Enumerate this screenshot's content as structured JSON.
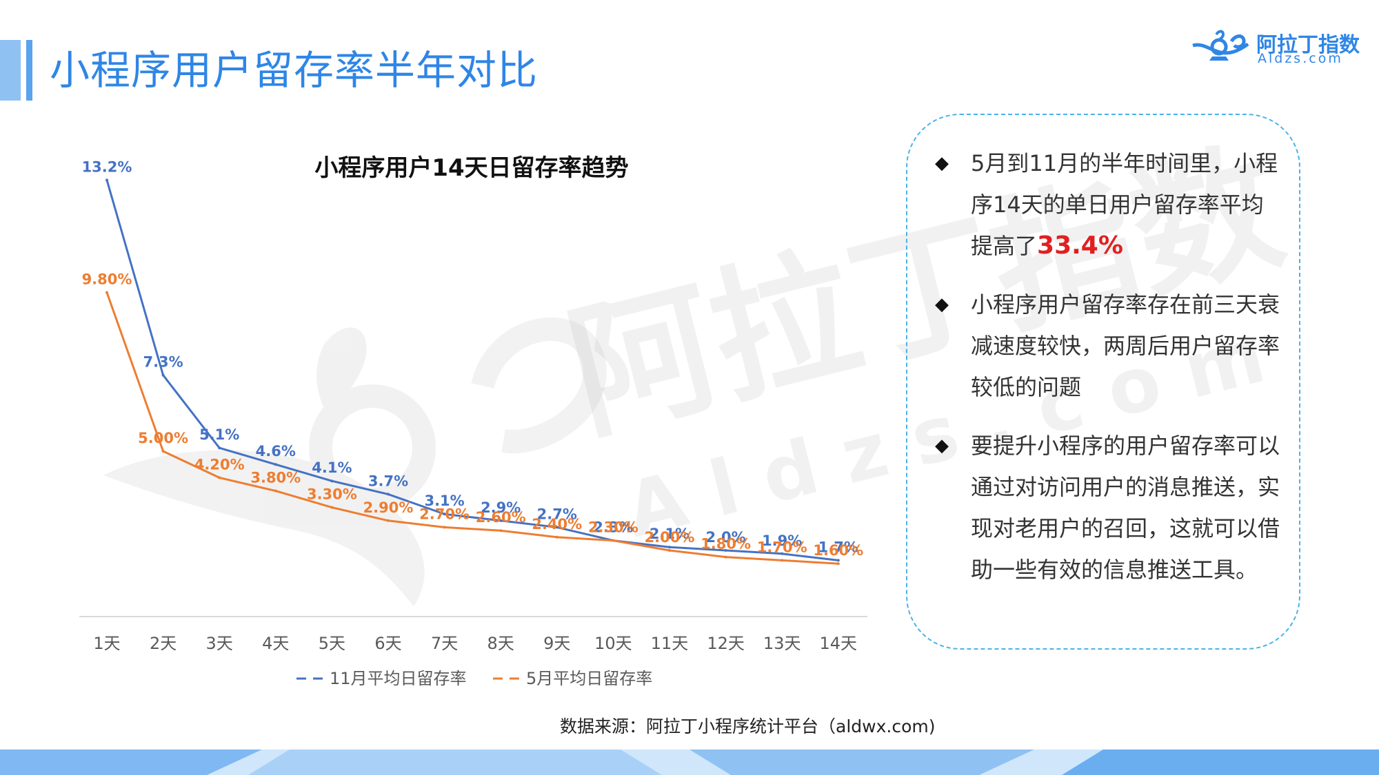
{
  "header": {
    "title": "小程序用户留存率半年对比",
    "logo_cn": "阿拉丁指数",
    "logo_en": "Aldzs.com"
  },
  "watermark": {
    "cn": "阿拉丁指数",
    "en": "Aldzs.com"
  },
  "chart_data": {
    "type": "line",
    "title": "小程序用户14天日留存率趋势",
    "categories": [
      "1天",
      "2天",
      "3天",
      "4天",
      "5天",
      "6天",
      "7天",
      "8天",
      "9天",
      "10天",
      "11天",
      "12天",
      "13天",
      "14天"
    ],
    "series": [
      {
        "name": "11月平均日留存率",
        "color": "#4472c4",
        "values": [
          13.2,
          7.3,
          5.1,
          4.6,
          4.1,
          3.7,
          3.1,
          2.9,
          2.7,
          2.3,
          2.1,
          2.0,
          1.9,
          1.7
        ],
        "labels": [
          "13.2%",
          "7.3%",
          "5.1%",
          "4.6%",
          "4.1%",
          "3.7%",
          "3.1%",
          "2.9%",
          "2.7%",
          "2.3%",
          "2.1%",
          "2.0%",
          "1.9%",
          "1.7%"
        ]
      },
      {
        "name": "5月平均日留存率",
        "color": "#ed7d31",
        "values": [
          9.8,
          5.0,
          4.2,
          3.8,
          3.3,
          2.9,
          2.7,
          2.6,
          2.4,
          2.3,
          2.0,
          1.8,
          1.7,
          1.6
        ],
        "labels": [
          "9.80%",
          "5.00%",
          "4.20%",
          "3.80%",
          "3.30%",
          "2.90%",
          "2.70%",
          "2.60%",
          "2.40%",
          "2.30%",
          "2.00%",
          "1.80%",
          "1.70%",
          "1.60%"
        ]
      }
    ],
    "ylim": [
      0,
      14
    ],
    "legend": "bottom",
    "grid": false
  },
  "panel": {
    "bullets": [
      {
        "text": "5月到11月的半年时间里，小程序14天的单日用户留存率平均提高了",
        "highlight": "33.4%"
      },
      {
        "text": "小程序用户留存率存在前三天衰减速度较快，两周后用户留存率较低的问题",
        "highlight": ""
      },
      {
        "text": "要提升小程序的用户留存率可以通过对访问用户的消息推送，实现对老用户的召回，这就可以借助一些有效的信息推送工具。",
        "highlight": ""
      }
    ],
    "bullet_symbol": "◆",
    "border_color": "#48b3e6",
    "highlight_color": "#e02020"
  },
  "source": "数据来源：阿拉丁小程序统计平台（aldwx.com)"
}
